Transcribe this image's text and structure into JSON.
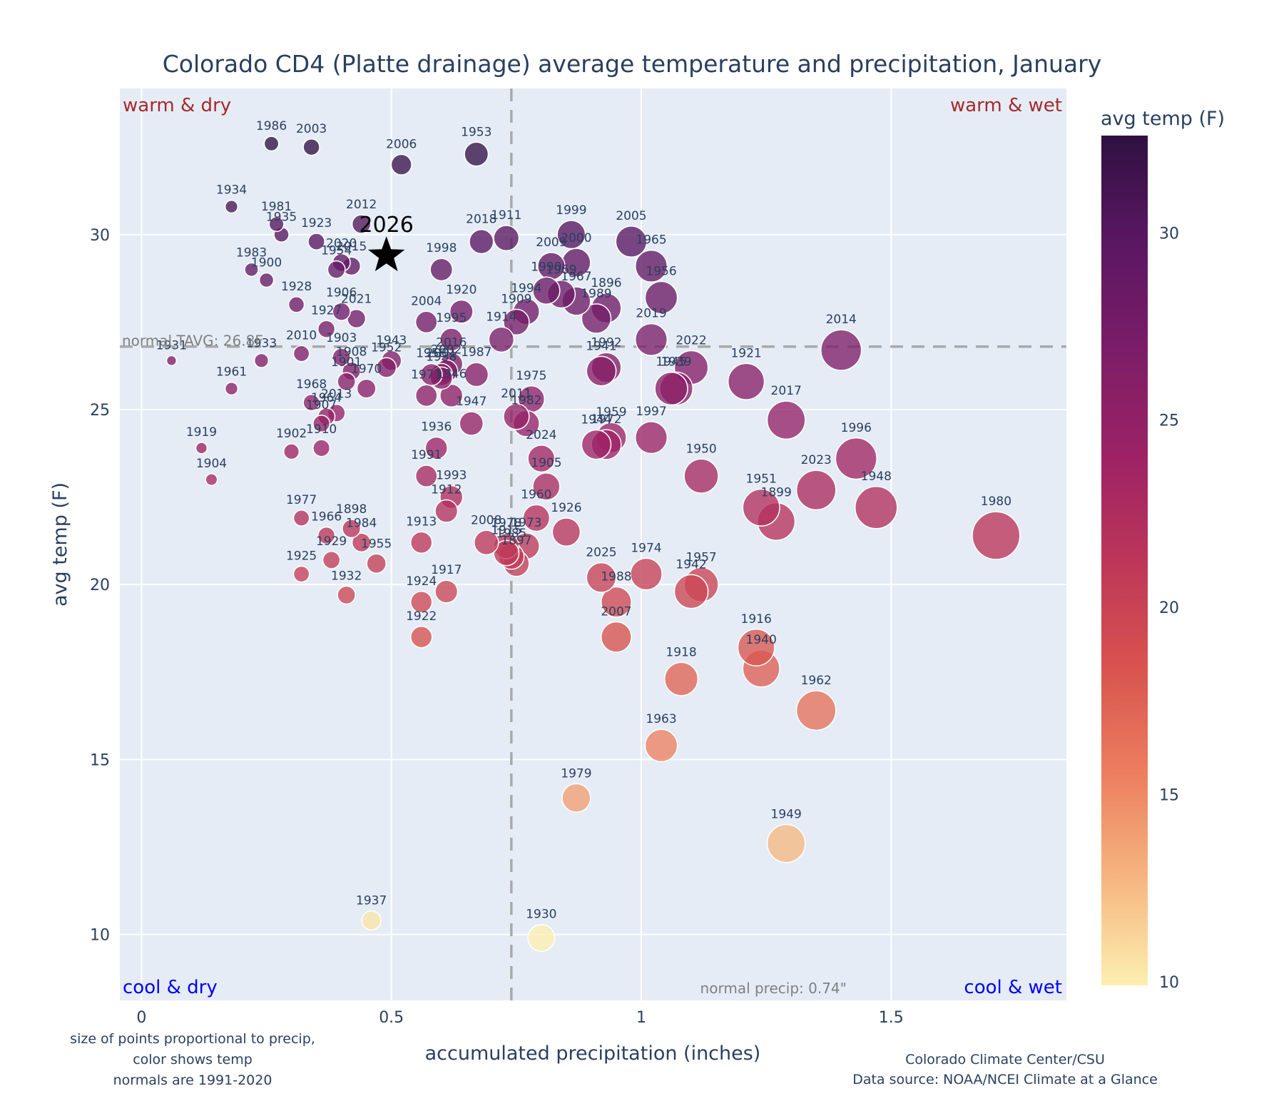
{
  "chart_data": {
    "type": "scatter",
    "title": "Colorado CD4 (Platte drainage) average temperature and precipitation, January",
    "xlabel": "accumulated precipitation (inches)",
    "ylabel": "avg temp (F)",
    "xlim": [
      -0.04,
      1.84
    ],
    "ylim": [
      8.2,
      34.2
    ],
    "xticks": [
      0,
      0.5,
      1,
      1.5
    ],
    "xtick_labels": [
      "0",
      "0.5",
      "1",
      "1.5"
    ],
    "yticks": [
      10,
      15,
      20,
      25,
      30
    ],
    "ytick_labels": [
      "10",
      "15",
      "20",
      "25",
      "30"
    ],
    "grid": true,
    "colorbar": {
      "title": "avg temp (F)",
      "range": [
        9.9,
        32.6
      ],
      "ticks": [
        10,
        15,
        20,
        25,
        30
      ],
      "tick_labels": [
        "10",
        "15",
        "20",
        "25",
        "30"
      ],
      "colorscale": "magma-like (light yellow to dark purple)",
      "stops": [
        "#fcefb0",
        "#f6b681",
        "#ec7e5f",
        "#d8534e",
        "#bd3659",
        "#9c2265",
        "#7b1d68",
        "#5a1762",
        "#2f1142"
      ]
    },
    "normal_precip": 0.74,
    "normal_tavg": 26.8,
    "normal_precip_label": "normal precip: 0.74\"",
    "normal_tavg_label": "normal TAVG: 26.8F",
    "quadrant_labels": {
      "top_left": "warm & dry",
      "top_right": "warm & wet",
      "bottom_left": "cool & dry",
      "bottom_right": "cool & wet"
    },
    "highlight": {
      "label": "2026",
      "x": 0.49,
      "y": 29.4,
      "marker": "star"
    },
    "points": [
      {
        "year": "1986",
        "x": 0.26,
        "y": 32.6
      },
      {
        "year": "2003",
        "x": 0.34,
        "y": 32.5
      },
      {
        "year": "2006",
        "x": 0.52,
        "y": 32.0
      },
      {
        "year": "1953",
        "x": 0.67,
        "y": 32.3
      },
      {
        "year": "1934",
        "x": 0.18,
        "y": 30.8
      },
      {
        "year": "1981",
        "x": 0.27,
        "y": 30.3
      },
      {
        "year": "1935",
        "x": 0.28,
        "y": 30.0
      },
      {
        "year": "1923",
        "x": 0.35,
        "y": 29.8
      },
      {
        "year": "2012",
        "x": 0.44,
        "y": 30.3
      },
      {
        "year": "2020",
        "x": 0.4,
        "y": 29.2
      },
      {
        "year": "1954",
        "x": 0.39,
        "y": 29.0
      },
      {
        "year": "2015",
        "x": 0.42,
        "y": 29.1
      },
      {
        "year": "1983",
        "x": 0.22,
        "y": 29.0
      },
      {
        "year": "1900",
        "x": 0.25,
        "y": 28.7
      },
      {
        "year": "1928",
        "x": 0.31,
        "y": 28.0
      },
      {
        "year": "1906",
        "x": 0.4,
        "y": 27.8
      },
      {
        "year": "2021",
        "x": 0.43,
        "y": 27.6
      },
      {
        "year": "1927",
        "x": 0.37,
        "y": 27.3
      },
      {
        "year": "1903",
        "x": 0.4,
        "y": 26.5
      },
      {
        "year": "2010",
        "x": 0.32,
        "y": 26.6
      },
      {
        "year": "1933",
        "x": 0.24,
        "y": 26.4
      },
      {
        "year": "1931",
        "x": 0.06,
        "y": 26.4
      },
      {
        "year": "1961",
        "x": 0.18,
        "y": 25.6
      },
      {
        "year": "1908",
        "x": 0.42,
        "y": 26.1
      },
      {
        "year": "1901",
        "x": 0.41,
        "y": 25.8
      },
      {
        "year": "1943",
        "x": 0.5,
        "y": 26.4
      },
      {
        "year": "1952",
        "x": 0.49,
        "y": 26.2
      },
      {
        "year": "1970",
        "x": 0.45,
        "y": 25.6
      },
      {
        "year": "1968",
        "x": 0.34,
        "y": 25.2
      },
      {
        "year": "2013",
        "x": 0.39,
        "y": 24.9
      },
      {
        "year": "1964",
        "x": 0.37,
        "y": 24.8
      },
      {
        "year": "1907",
        "x": 0.36,
        "y": 24.6
      },
      {
        "year": "1910",
        "x": 0.36,
        "y": 23.9
      },
      {
        "year": "1902",
        "x": 0.3,
        "y": 23.8
      },
      {
        "year": "1919",
        "x": 0.12,
        "y": 23.9
      },
      {
        "year": "1904",
        "x": 0.14,
        "y": 23.0
      },
      {
        "year": "1998",
        "x": 0.6,
        "y": 29.0
      },
      {
        "year": "2018",
        "x": 0.68,
        "y": 29.8
      },
      {
        "year": "1911",
        "x": 0.73,
        "y": 29.9
      },
      {
        "year": "2004",
        "x": 0.57,
        "y": 27.5
      },
      {
        "year": "1920",
        "x": 0.64,
        "y": 27.8
      },
      {
        "year": "1995",
        "x": 0.62,
        "y": 27.0
      },
      {
        "year": "1994",
        "x": 0.77,
        "y": 27.8
      },
      {
        "year": "1909",
        "x": 0.75,
        "y": 27.5
      },
      {
        "year": "1914",
        "x": 0.72,
        "y": 27.0
      },
      {
        "year": "2016",
        "x": 0.62,
        "y": 26.3
      },
      {
        "year": "1987",
        "x": 0.67,
        "y": 26.0
      },
      {
        "year": "1958",
        "x": 0.58,
        "y": 26.0
      },
      {
        "year": "2001",
        "x": 0.6,
        "y": 26.0
      },
      {
        "year": "2002",
        "x": 0.61,
        "y": 26.1
      },
      {
        "year": "1971",
        "x": 0.57,
        "y": 25.4
      },
      {
        "year": "1938",
        "x": 0.6,
        "y": 25.9
      },
      {
        "year": "1946",
        "x": 0.62,
        "y": 25.4
      },
      {
        "year": "1947",
        "x": 0.66,
        "y": 24.6
      },
      {
        "year": "1936",
        "x": 0.59,
        "y": 23.9
      },
      {
        "year": "1991",
        "x": 0.57,
        "y": 23.1
      },
      {
        "year": "1993",
        "x": 0.62,
        "y": 22.5
      },
      {
        "year": "1912",
        "x": 0.61,
        "y": 22.1
      },
      {
        "year": "1913",
        "x": 0.56,
        "y": 21.2
      },
      {
        "year": "1975",
        "x": 0.78,
        "y": 25.3
      },
      {
        "year": "2011",
        "x": 0.75,
        "y": 24.8
      },
      {
        "year": "1982",
        "x": 0.77,
        "y": 24.6
      },
      {
        "year": "2024",
        "x": 0.8,
        "y": 23.6
      },
      {
        "year": "1905",
        "x": 0.81,
        "y": 22.8
      },
      {
        "year": "1960",
        "x": 0.79,
        "y": 21.9
      },
      {
        "year": "1926",
        "x": 0.85,
        "y": 21.5
      },
      {
        "year": "2008",
        "x": 0.69,
        "y": 21.2
      },
      {
        "year": "1978",
        "x": 0.73,
        "y": 21.1
      },
      {
        "year": "1915",
        "x": 0.73,
        "y": 20.9
      },
      {
        "year": "1985",
        "x": 0.74,
        "y": 20.8
      },
      {
        "year": "1973",
        "x": 0.77,
        "y": 21.1
      },
      {
        "year": "1897",
        "x": 0.75,
        "y": 20.6
      },
      {
        "year": "1917",
        "x": 0.61,
        "y": 19.8
      },
      {
        "year": "1924",
        "x": 0.56,
        "y": 19.5
      },
      {
        "year": "1922",
        "x": 0.56,
        "y": 18.5
      },
      {
        "year": "1977",
        "x": 0.32,
        "y": 21.9
      },
      {
        "year": "1966",
        "x": 0.37,
        "y": 21.4
      },
      {
        "year": "1898",
        "x": 0.42,
        "y": 21.6
      },
      {
        "year": "1984",
        "x": 0.44,
        "y": 21.2
      },
      {
        "year": "1929",
        "x": 0.38,
        "y": 20.7
      },
      {
        "year": "1955",
        "x": 0.47,
        "y": 20.6
      },
      {
        "year": "1925",
        "x": 0.32,
        "y": 20.3
      },
      {
        "year": "1932",
        "x": 0.41,
        "y": 19.7
      },
      {
        "year": "1937",
        "x": 0.46,
        "y": 10.4
      },
      {
        "year": "1930",
        "x": 0.8,
        "y": 9.9
      },
      {
        "year": "1979",
        "x": 0.87,
        "y": 13.9
      },
      {
        "year": "1999",
        "x": 0.86,
        "y": 30.0
      },
      {
        "year": "2009",
        "x": 0.82,
        "y": 29.1
      },
      {
        "year": "2000",
        "x": 0.87,
        "y": 29.2
      },
      {
        "year": "1990",
        "x": 0.81,
        "y": 28.4
      },
      {
        "year": "1969",
        "x": 0.84,
        "y": 28.3
      },
      {
        "year": "1967",
        "x": 0.87,
        "y": 28.1
      },
      {
        "year": "1896",
        "x": 0.93,
        "y": 27.9
      },
      {
        "year": "1989",
        "x": 0.91,
        "y": 27.6
      },
      {
        "year": "2005",
        "x": 0.98,
        "y": 29.8
      },
      {
        "year": "1965",
        "x": 1.02,
        "y": 29.1
      },
      {
        "year": "1956",
        "x": 1.04,
        "y": 28.2
      },
      {
        "year": "2019",
        "x": 1.02,
        "y": 27.0
      },
      {
        "year": "1992",
        "x": 0.93,
        "y": 26.2
      },
      {
        "year": "1941",
        "x": 0.92,
        "y": 26.1
      },
      {
        "year": "1959",
        "x": 0.94,
        "y": 24.2
      },
      {
        "year": "1944",
        "x": 0.91,
        "y": 24.0
      },
      {
        "year": "1972",
        "x": 0.93,
        "y": 24.0
      },
      {
        "year": "1997",
        "x": 1.02,
        "y": 24.2
      },
      {
        "year": "2022",
        "x": 1.1,
        "y": 26.2
      },
      {
        "year": "1939",
        "x": 1.07,
        "y": 25.6
      },
      {
        "year": "1945",
        "x": 1.06,
        "y": 25.6
      },
      {
        "year": "1921",
        "x": 1.21,
        "y": 25.8
      },
      {
        "year": "2014",
        "x": 1.4,
        "y": 26.7
      },
      {
        "year": "2017",
        "x": 1.29,
        "y": 24.7
      },
      {
        "year": "1950",
        "x": 1.12,
        "y": 23.1
      },
      {
        "year": "1996",
        "x": 1.43,
        "y": 23.6
      },
      {
        "year": "2023",
        "x": 1.35,
        "y": 22.7
      },
      {
        "year": "1948",
        "x": 1.47,
        "y": 22.2
      },
      {
        "year": "1951",
        "x": 1.24,
        "y": 22.2
      },
      {
        "year": "1899",
        "x": 1.27,
        "y": 21.8
      },
      {
        "year": "1980",
        "x": 1.71,
        "y": 21.4
      },
      {
        "year": "2025",
        "x": 0.92,
        "y": 20.2
      },
      {
        "year": "1988",
        "x": 0.95,
        "y": 19.5
      },
      {
        "year": "1974",
        "x": 1.01,
        "y": 20.3
      },
      {
        "year": "1942",
        "x": 1.1,
        "y": 19.8
      },
      {
        "year": "1957",
        "x": 1.12,
        "y": 20.0
      },
      {
        "year": "2007",
        "x": 0.95,
        "y": 18.5
      },
      {
        "year": "1916",
        "x": 1.23,
        "y": 18.2
      },
      {
        "year": "1940",
        "x": 1.24,
        "y": 17.6
      },
      {
        "year": "1918",
        "x": 1.08,
        "y": 17.3
      },
      {
        "year": "1962",
        "x": 1.35,
        "y": 16.4
      },
      {
        "year": "1963",
        "x": 1.04,
        "y": 15.4
      },
      {
        "year": "1949",
        "x": 1.29,
        "y": 12.6
      }
    ]
  },
  "notes": {
    "left_lines": [
      "size of points proportional to precip,",
      "color shows temp",
      "normals are 1991-2020"
    ],
    "right_lines": [
      "Colorado Climate Center/CSU",
      "Data source: NOAA/NCEI Climate at a Glance"
    ]
  }
}
